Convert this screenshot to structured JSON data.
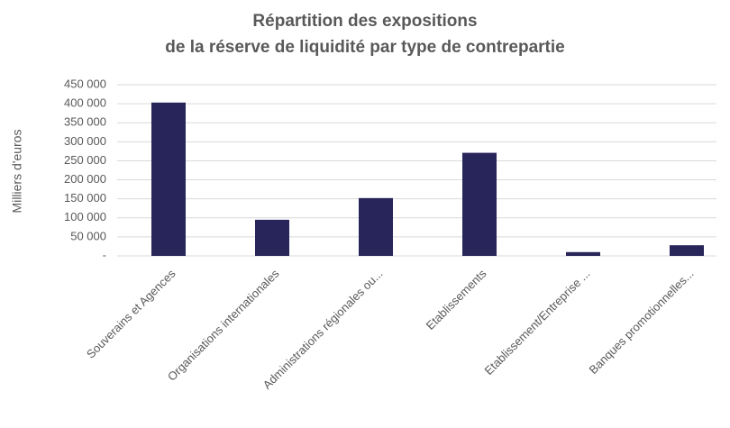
{
  "chart_data": {
    "type": "bar",
    "title": [
      "Répartition des expositions",
      "de la réserve de liquidité par type de contrepartie"
    ],
    "y_label": "Milliers d'euros",
    "categories": [
      "Souverains et Agences",
      "Organisations internationales",
      "Administrations régionales ou...",
      "Etablissements",
      "Etablissement/Entreprise ...",
      "Banques promotionnelles..."
    ],
    "values": [
      403000,
      95000,
      152000,
      271000,
      10000,
      28000
    ],
    "color": "#28255a",
    "ylim": [
      0,
      450000
    ],
    "yticks": [
      {
        "value": 0,
        "label": "-"
      },
      {
        "value": 50000,
        "label": "50 000"
      },
      {
        "value": 100000,
        "label": "100 000"
      },
      {
        "value": 150000,
        "label": "150 000"
      },
      {
        "value": 200000,
        "label": "200 000"
      },
      {
        "value": 250000,
        "label": "250 000"
      },
      {
        "value": 300000,
        "label": "300 000"
      },
      {
        "value": 350000,
        "label": "350 000"
      },
      {
        "value": 400000,
        "label": "400 000"
      },
      {
        "value": 450000,
        "label": "450 000"
      }
    ],
    "grid": true
  }
}
